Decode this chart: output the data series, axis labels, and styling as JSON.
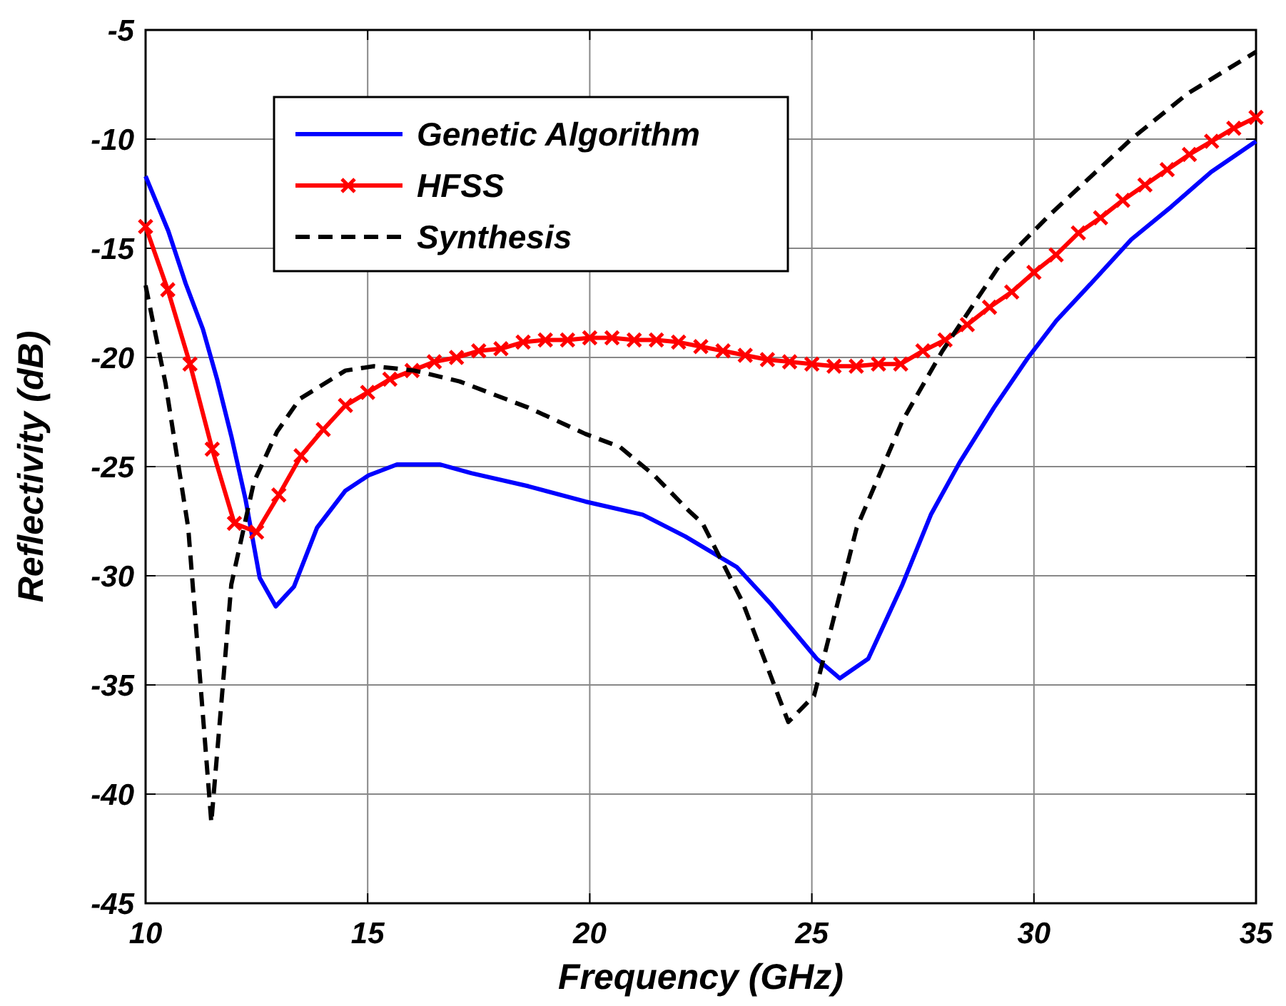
{
  "chart_data": {
    "type": "line",
    "xlabel": "Frequency (GHz)",
    "ylabel": "Reflectivity (dB)",
    "xlim": [
      10,
      35
    ],
    "ylim": [
      -45,
      -5
    ],
    "xticks": [
      10,
      15,
      20,
      25,
      30,
      35
    ],
    "yticks": [
      -45,
      -40,
      -35,
      -30,
      -25,
      -20,
      -15,
      -10,
      -5
    ],
    "grid": true,
    "legend": "top left",
    "series": [
      {
        "name": "Genetic Algorithm",
        "color": "#0000ff",
        "line_style": "solid",
        "marker": "none",
        "x": [
          10,
          10.51,
          10.9,
          11.29,
          11.61,
          11.93,
          12.25,
          12.57,
          12.93,
          13.34,
          13.86,
          14.5,
          15.02,
          15.66,
          16.62,
          17.33,
          18.62,
          19.9,
          21.19,
          22.15,
          23.31,
          24.08,
          25.11,
          25.63,
          26.27,
          27.04,
          27.68,
          28.33,
          29.1,
          29.87,
          30.51,
          31.29,
          32.19,
          33.09,
          33.99,
          35
        ],
        "values": [
          -11.7,
          -14.2,
          -16.6,
          -18.7,
          -21.0,
          -23.6,
          -26.5,
          -30.1,
          -31.4,
          -30.5,
          -27.8,
          -26.1,
          -25.4,
          -24.9,
          -24.9,
          -25.3,
          -25.9,
          -26.6,
          -27.2,
          -28.2,
          -29.6,
          -31.3,
          -33.8,
          -34.7,
          -33.8,
          -30.4,
          -27.2,
          -24.8,
          -22.3,
          -20.0,
          -18.3,
          -16.6,
          -14.6,
          -13.1,
          -11.5,
          -10.1
        ]
      },
      {
        "name": "HFSS",
        "color": "#ff0000",
        "line_style": "solid",
        "marker": "cross",
        "x": [
          10,
          10.5,
          11,
          11.5,
          12,
          12.5,
          13,
          13.5,
          14,
          14.5,
          15,
          15.5,
          16,
          16.5,
          17,
          17.5,
          18,
          18.5,
          19,
          19.5,
          20,
          20.5,
          21,
          21.5,
          22,
          22.5,
          23,
          23.5,
          24,
          24.5,
          25,
          25.5,
          26,
          26.5,
          27,
          27.5,
          28,
          28.5,
          29,
          29.5,
          30,
          30.5,
          31,
          31.5,
          32,
          32.5,
          33,
          33.5,
          34,
          34.5,
          35
        ],
        "values": [
          -14.0,
          -16.9,
          -20.3,
          -24.2,
          -27.6,
          -28.0,
          -26.3,
          -24.5,
          -23.3,
          -22.2,
          -21.6,
          -21.0,
          -20.6,
          -20.2,
          -20.0,
          -19.7,
          -19.6,
          -19.3,
          -19.2,
          -19.2,
          -19.1,
          -19.1,
          -19.2,
          -19.2,
          -19.3,
          -19.5,
          -19.7,
          -19.9,
          -20.1,
          -20.2,
          -20.3,
          -20.4,
          -20.4,
          -20.3,
          -20.3,
          -19.7,
          -19.2,
          -18.5,
          -17.7,
          -17.0,
          -16.1,
          -15.3,
          -14.3,
          -13.6,
          -12.8,
          -12.1,
          -11.4,
          -10.7,
          -10.1,
          -9.5,
          -9.0
        ]
      },
      {
        "name": "Synthesis",
        "color": "#000000",
        "line_style": "dashed",
        "marker": "none",
        "x": [
          10,
          10.45,
          10.96,
          11.48,
          11.93,
          12.44,
          12.96,
          13.47,
          14.5,
          15.14,
          16.05,
          17.07,
          18.62,
          19.9,
          20.68,
          21.45,
          22.22,
          22.54,
          23.44,
          24.47,
          25.05,
          26.01,
          27.04,
          27.94,
          29.22,
          30.39,
          32.19,
          33.47,
          35
        ],
        "values": [
          -16.7,
          -21.2,
          -27.8,
          -41.3,
          -30.4,
          -25.7,
          -23.4,
          -21.9,
          -20.6,
          -20.4,
          -20.6,
          -21.1,
          -22.3,
          -23.5,
          -24.1,
          -25.4,
          -27.0,
          -27.6,
          -31.2,
          -36.7,
          -35.5,
          -27.8,
          -22.9,
          -19.7,
          -15.8,
          -13.4,
          -10.0,
          -7.9,
          -6.0
        ]
      }
    ]
  }
}
